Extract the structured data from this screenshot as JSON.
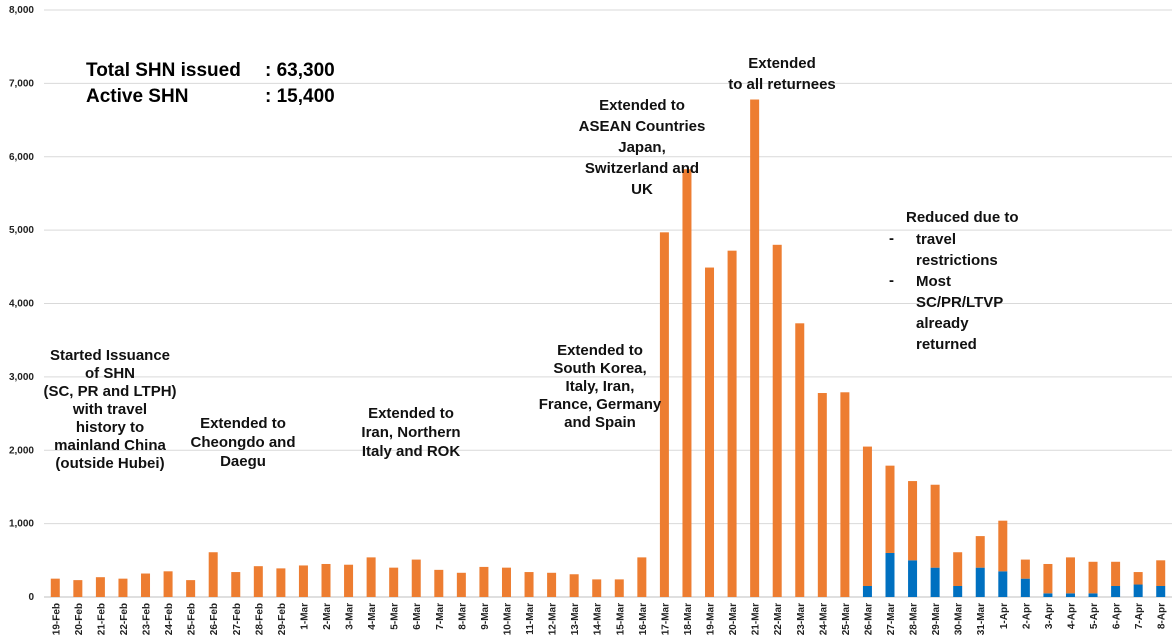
{
  "chart_data": {
    "type": "bar",
    "stacked": true,
    "ylim": [
      0,
      8000
    ],
    "yticks": [
      0,
      1000,
      2000,
      3000,
      4000,
      5000,
      6000,
      7000,
      8000
    ],
    "ytick_labels": [
      "0",
      "1,000",
      "2,000",
      "3,000",
      "4,000",
      "5,000",
      "6,000",
      "7,000",
      "8,000"
    ],
    "grid": true,
    "legend": "none",
    "categories": [
      "19-Feb",
      "20-Feb",
      "21-Feb",
      "22-Feb",
      "23-Feb",
      "24-Feb",
      "25-Feb",
      "26-Feb",
      "27-Feb",
      "28-Feb",
      "29-Feb",
      "1-Mar",
      "2-Mar",
      "3-Mar",
      "4-Mar",
      "5-Mar",
      "6-Mar",
      "7-Mar",
      "8-Mar",
      "9-Mar",
      "10-Mar",
      "11-Mar",
      "12-Mar",
      "13-Mar",
      "14-Mar",
      "15-Mar",
      "16-Mar",
      "17-Mar",
      "18-Mar",
      "19-Mar",
      "20-Mar",
      "21-Mar",
      "22-Mar",
      "23-Mar",
      "24-Mar",
      "25-Mar",
      "26-Mar",
      "27-Mar",
      "28-Mar",
      "29-Mar",
      "30-Mar",
      "31-Mar",
      "1-Apr",
      "2-Apr",
      "3-Apr",
      "4-Apr",
      "5-Apr",
      "6-Apr",
      "7-Apr",
      "8-Apr"
    ],
    "series": [
      {
        "color": "#0070c0",
        "values": [
          0,
          0,
          0,
          0,
          0,
          0,
          0,
          0,
          0,
          0,
          0,
          0,
          0,
          0,
          0,
          0,
          0,
          0,
          0,
          0,
          0,
          0,
          0,
          0,
          0,
          0,
          0,
          0,
          0,
          0,
          0,
          0,
          0,
          0,
          0,
          0,
          150,
          600,
          500,
          400,
          150,
          400,
          350,
          250,
          50,
          50,
          50,
          150,
          170,
          150
        ]
      },
      {
        "color": "#ed7d31",
        "values": [
          250,
          230,
          270,
          250,
          320,
          350,
          230,
          610,
          340,
          420,
          390,
          430,
          450,
          440,
          540,
          400,
          510,
          370,
          330,
          410,
          400,
          340,
          330,
          310,
          240,
          240,
          540,
          4970,
          5830,
          4490,
          4720,
          6780,
          4800,
          3730,
          2780,
          2790,
          1900,
          1190,
          1080,
          1130,
          460,
          430,
          690,
          260,
          400,
          490,
          430,
          330,
          170,
          350
        ]
      }
    ],
    "totals": [
      {
        "label": "Total SHN issued",
        "value": ": 63,300"
      },
      {
        "label": "Active SHN",
        "value": ": 15,400"
      }
    ],
    "annotations": [
      {
        "id": "started",
        "lines": [
          "Started Issuance",
          "of SHN",
          "(SC, PR and LTPH)",
          "with travel",
          "history to",
          "mainland China",
          "(outside Hubei)"
        ]
      },
      {
        "id": "cheongdo",
        "lines": [
          "Extended to",
          "Cheongdo and",
          "Daegu"
        ]
      },
      {
        "id": "iran",
        "lines": [
          "Extended to",
          "Iran, Northern",
          "Italy and ROK"
        ]
      },
      {
        "id": "skorea",
        "lines": [
          "Extended to",
          "South Korea,",
          "Italy, Iran,",
          "France, Germany",
          "and Spain"
        ]
      },
      {
        "id": "asean",
        "lines": [
          "Extended to",
          "ASEAN Countries",
          "Japan,",
          "Switzerland and",
          "UK"
        ]
      },
      {
        "id": "returnees",
        "lines": [
          "Extended",
          "to all returnees"
        ]
      },
      {
        "id": "reduced",
        "lines": [
          "Reduced due to"
        ]
      },
      {
        "id": "reduced-b1",
        "lines": [
          "travel",
          "restrictions"
        ]
      },
      {
        "id": "reduced-b2",
        "lines": [
          "Most",
          "SC/PR/LTVP",
          "already",
          "returned"
        ]
      },
      {
        "id": "dash1",
        "lines": [
          "-"
        ]
      },
      {
        "id": "dash2",
        "lines": [
          "-"
        ]
      }
    ]
  }
}
